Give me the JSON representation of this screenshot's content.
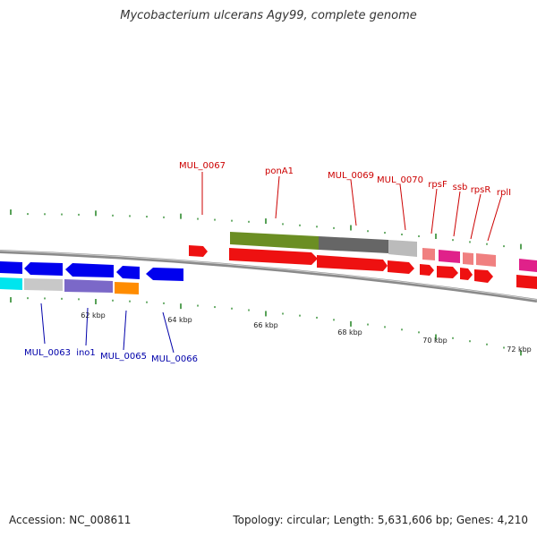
{
  "title": "Mycobacterium ulcerans Agy99, complete genome",
  "footer": {
    "accession": "Accession: NC_008611",
    "summary": "Topology: circular; Length: 5,631,606 bp; Genes: 4,210"
  },
  "colors": {
    "backbone": "#777777",
    "tick": "#2e8b2e",
    "forward_label": "#cc0000",
    "reverse_label": "#0000aa"
  },
  "scale_labels": [
    "62 kbp",
    "64 kbp",
    "66 kbp",
    "68 kbp",
    "70 kbp",
    "72 kbp"
  ],
  "forward_labels": [
    "MUL_0067",
    "ponA1",
    "MUL_0069",
    "MUL_0070",
    "rpsF",
    "ssb",
    "rpsR",
    "rplI"
  ],
  "reverse_labels": [
    "MUL_0063",
    "ino1",
    "MUL_0065",
    "MUL_0066"
  ]
}
